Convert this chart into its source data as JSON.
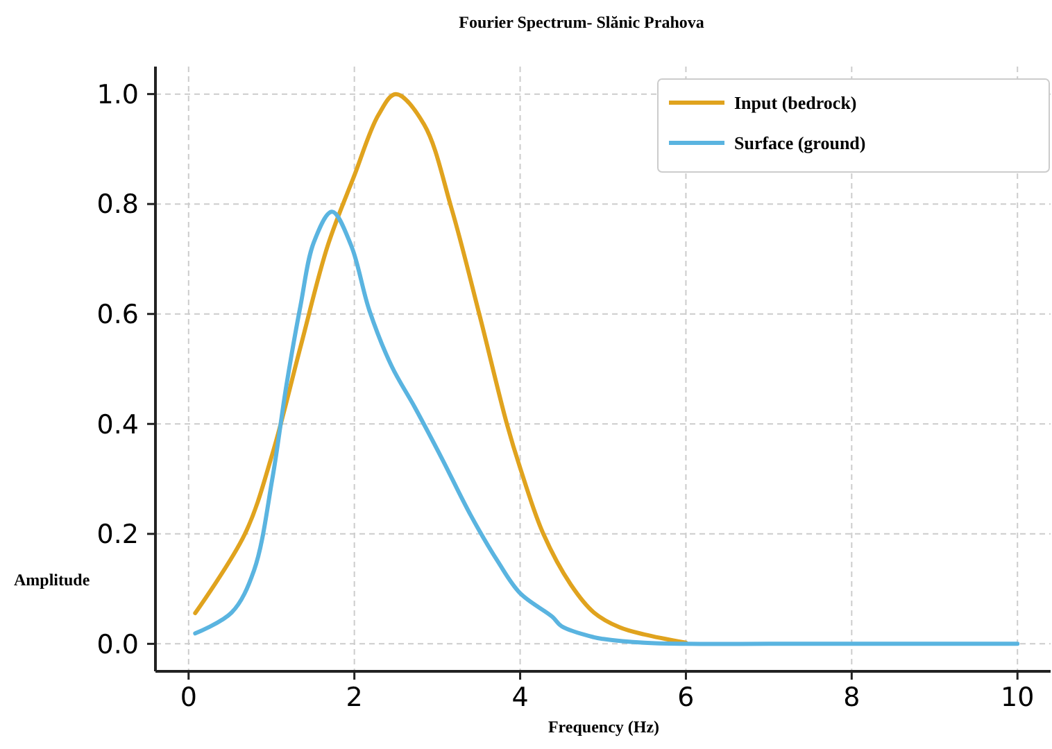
{
  "chart_data": {
    "type": "line",
    "title": "Fourier Spectrum- Slănic Prahova",
    "xlabel": "Frequency (Hz)",
    "ylabel": "Amplitude",
    "xlim": [
      -0.4,
      10.4
    ],
    "ylim": [
      -0.05,
      1.05
    ],
    "xticks": [
      0,
      2,
      4,
      6,
      8,
      10
    ],
    "yticks": [
      {
        "value": 0,
        "label": "0.0"
      },
      {
        "value": 0.2,
        "label": "0.2"
      },
      {
        "value": 0.4,
        "label": "0.4"
      },
      {
        "value": 0.6,
        "label": "0.6"
      },
      {
        "value": 0.8,
        "label": "0.8"
      },
      {
        "value": 1,
        "label": "1.0"
      }
    ],
    "grid": true,
    "legend": "top right",
    "series": [
      {
        "name": "Input (bedrock)",
        "color": "#e0a31e",
        "x": [
          0.08,
          0.68,
          1.01,
          1.35,
          1.68,
          2.0,
          2.29,
          2.5,
          2.84,
          3.17,
          3.51,
          3.84,
          4.0,
          4.28,
          4.61,
          4.89,
          5.2,
          5.5,
          6.0
        ],
        "values": [
          0.056,
          0.2,
          0.345,
          0.54,
          0.725,
          0.852,
          0.962,
          1.0,
          0.945,
          0.793,
          0.598,
          0.4,
          0.32,
          0.2,
          0.108,
          0.057,
          0.03,
          0.017,
          0.002
        ]
      },
      {
        "name": "Surface (ground)",
        "color": "#5ab4e0",
        "x": [
          0.08,
          0.52,
          0.79,
          1.01,
          1.18,
          1.35,
          1.51,
          1.73,
          1.96,
          2.18,
          2.45,
          2.73,
          3.06,
          3.4,
          3.73,
          4.0,
          4.39,
          4.5,
          4.89,
          5.0,
          5.5,
          6.0,
          7.0,
          8.0,
          9.0,
          10.0
        ],
        "values": [
          0.019,
          0.057,
          0.134,
          0.3,
          0.47,
          0.615,
          0.73,
          0.786,
          0.725,
          0.607,
          0.505,
          0.43,
          0.336,
          0.235,
          0.15,
          0.092,
          0.049,
          0.032,
          0.012,
          0.009,
          0.002,
          0,
          0,
          0,
          0,
          0
        ]
      }
    ]
  }
}
